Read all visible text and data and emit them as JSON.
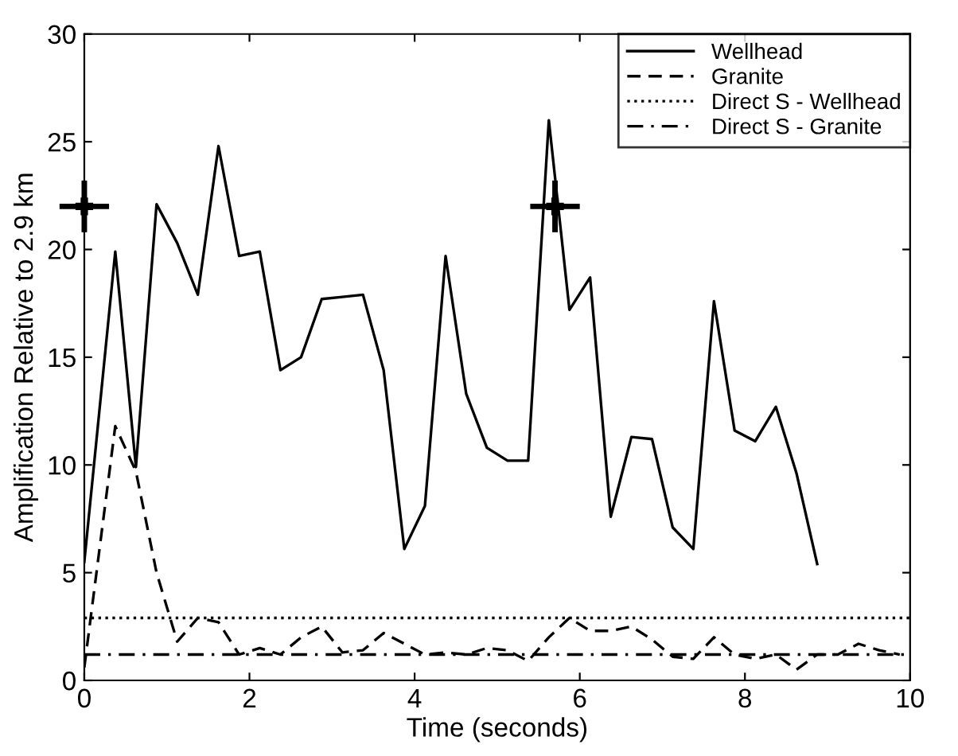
{
  "chart_data": {
    "type": "line",
    "xlabel": "Time (seconds)",
    "ylabel": "Amplification Relative to 2.9 km",
    "xlim": [
      0,
      10
    ],
    "ylim": [
      0,
      30
    ],
    "xticks": [
      0,
      2,
      4,
      6,
      8,
      10
    ],
    "yticks": [
      0,
      5,
      10,
      15,
      20,
      25,
      30
    ],
    "grid": false,
    "legend": "top right",
    "series": [
      {
        "name": "Wellhead",
        "color": "#000000",
        "line_style": "solid",
        "x": [
          0,
          0.375,
          0.625,
          0.875,
          1.125,
          1.375,
          1.625,
          1.875,
          2.125,
          2.375,
          2.625,
          2.875,
          3.125,
          3.375,
          3.625,
          3.875,
          4.125,
          4.375,
          4.625,
          4.875,
          5.125,
          5.375,
          5.625,
          5.875,
          6.125,
          6.375,
          6.625,
          6.875,
          7.125,
          7.375,
          7.625,
          7.875,
          8.125,
          8.375,
          8.625,
          8.875
        ],
        "values": [
          5.5,
          19.9,
          9.9,
          22.1,
          20.3,
          17.9,
          24.8,
          19.7,
          19.9,
          14.4,
          15.0,
          17.7,
          17.8,
          17.9,
          14.4,
          6.1,
          8.1,
          19.7,
          13.3,
          10.8,
          10.2,
          10.2,
          26.0,
          17.2,
          18.7,
          7.6,
          11.3,
          11.2,
          7.1,
          6.1,
          17.6,
          11.6,
          11.1,
          12.7,
          9.6,
          5.4
        ]
      },
      {
        "name": "Granite",
        "color": "#000000",
        "line_style": "dashed",
        "x": [
          0,
          0.375,
          0.625,
          0.875,
          1.125,
          1.375,
          1.625,
          1.875,
          2.125,
          2.375,
          2.625,
          2.875,
          3.125,
          3.375,
          3.625,
          3.875,
          4.125,
          4.375,
          4.625,
          4.875,
          5.125,
          5.375,
          5.625,
          5.875,
          6.125,
          6.375,
          6.625,
          6.875,
          7.125,
          7.375,
          7.625,
          7.875,
          8.125,
          8.375,
          8.625,
          8.875,
          9.125,
          9.375,
          9.625,
          9.875
        ],
        "values": [
          0.6,
          11.8,
          9.7,
          5.0,
          1.8,
          2.9,
          2.7,
          1.2,
          1.5,
          1.2,
          2.0,
          2.5,
          1.3,
          1.4,
          2.2,
          1.7,
          1.2,
          1.3,
          1.2,
          1.5,
          1.4,
          0.9,
          2.0,
          2.9,
          2.3,
          2.3,
          2.5,
          1.9,
          1.1,
          1.0,
          2.0,
          1.2,
          1.0,
          1.2,
          0.5,
          1.2,
          1.2,
          1.7,
          1.4,
          1.2
        ]
      },
      {
        "name": "Direct S - Wellhead",
        "color": "#000000",
        "line_style": "dotted",
        "x": [
          0,
          10
        ],
        "values": [
          2.9,
          2.9
        ]
      },
      {
        "name": "Direct S - Granite",
        "color": "#000000",
        "line_style": "dashdot",
        "x": [
          0,
          10
        ],
        "values": [
          1.2,
          1.2
        ]
      },
      {
        "type": "scatter",
        "marker": "cross",
        "color": "#000000",
        "x": [
          0,
          5.7
        ],
        "values": [
          22,
          22
        ],
        "errors": [
          1.2,
          1.2
        ],
        "xerrors": [
          0.3,
          0.3
        ]
      }
    ]
  }
}
